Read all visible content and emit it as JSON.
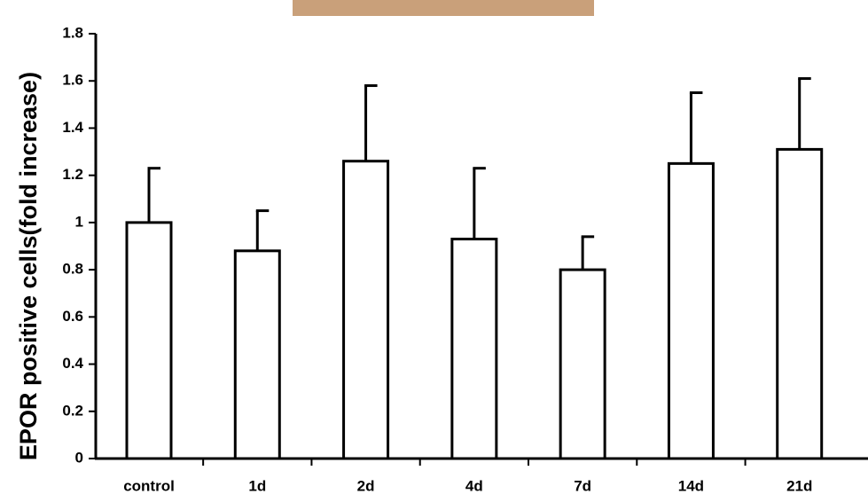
{
  "chart_data": {
    "type": "bar",
    "y_label": "EPOR positive cells(fold increase)",
    "categories": [
      "control",
      "1d",
      "2d",
      "4d",
      "7d",
      "14d",
      "21d"
    ],
    "values": [
      1.0,
      0.88,
      1.26,
      0.93,
      0.8,
      1.25,
      1.31
    ],
    "errors": [
      0.23,
      0.17,
      0.32,
      0.3,
      0.14,
      0.3,
      0.3
    ],
    "color": "#ffffff",
    "ylim": [
      0,
      1.8
    ],
    "yticks": [
      0,
      0.2,
      0.4,
      0.6,
      0.8,
      1,
      1.2,
      1.4,
      1.6,
      1.8
    ]
  }
}
